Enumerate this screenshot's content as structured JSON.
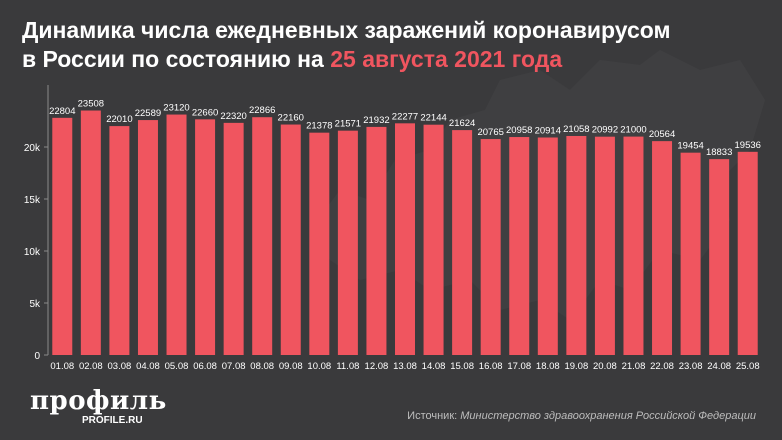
{
  "title": {
    "line1": "Динамика числа ежедневных заражений коронавирусом",
    "line2_prefix": "в России по состоянию на",
    "line2_date": "25 августа 2021 года"
  },
  "colors": {
    "background": "#3a3a3c",
    "bar": "#f0555f",
    "highlight": "#f0555f",
    "text": "#ffffff"
  },
  "brand": {
    "name": "профиль",
    "url": "PROFILE.RU"
  },
  "source": {
    "label": "Источник:",
    "org": "Министерство здравоохранения Российской Федерации"
  },
  "chart_data": {
    "type": "bar",
    "categories": [
      "01.08",
      "02.08",
      "03.08",
      "04.08",
      "05.08",
      "06.08",
      "07.08",
      "08.08",
      "09.08",
      "10.08",
      "11.08",
      "12.08",
      "13.08",
      "14.08",
      "15.08",
      "16.08",
      "17.08",
      "18.08",
      "19.08",
      "20.08",
      "21.08",
      "22.08",
      "23.08",
      "24.08",
      "25.08"
    ],
    "values": [
      22804,
      23508,
      22010,
      22589,
      23120,
      22660,
      22320,
      22866,
      22160,
      21378,
      21571,
      21932,
      22277,
      22144,
      21624,
      20765,
      20958,
      20914,
      21058,
      20992,
      21000,
      20564,
      19454,
      18833,
      19536
    ],
    "ylim": [
      0,
      25000
    ],
    "yticks": [
      0,
      5000,
      10000,
      15000,
      20000
    ],
    "ytick_labels": [
      "0",
      "5k",
      "10k",
      "15k",
      "20k"
    ],
    "grid": false,
    "data_labels": true
  }
}
